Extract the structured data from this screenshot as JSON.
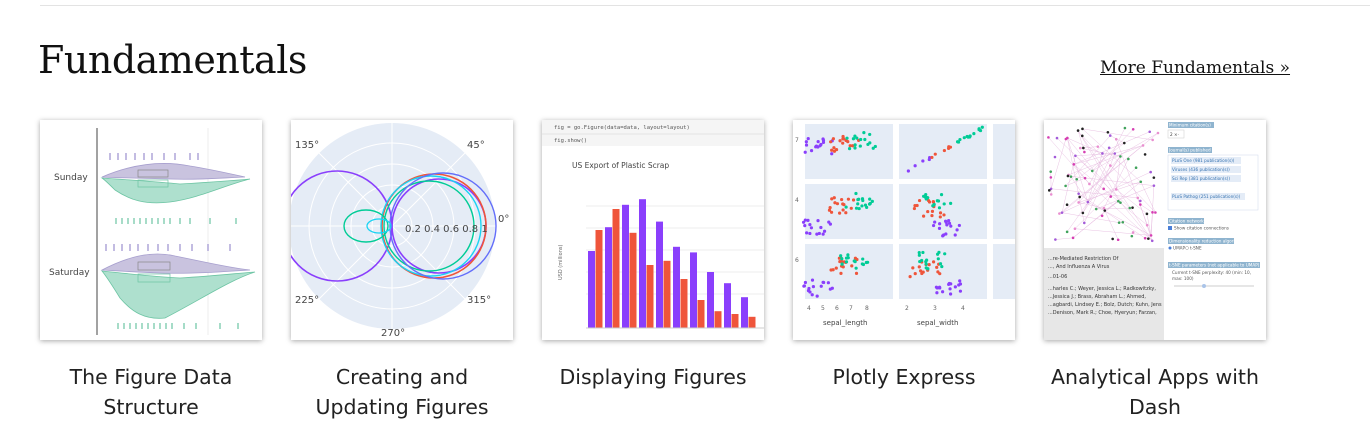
{
  "section": {
    "title": "Fundamentals",
    "more_link": "More Fundamentals »"
  },
  "cards": [
    {
      "caption_lines": [
        "The Figure Data",
        "Structure"
      ],
      "thumb_labels": [
        "Sunday",
        "Saturday"
      ]
    },
    {
      "caption_lines": [
        "Creating and",
        "Updating Figures"
      ],
      "thumb_labels": [
        "135°",
        "45°",
        "0°",
        "225°",
        "315°",
        "270°",
        "0.2 0.4 0.6 0.8 1"
      ]
    },
    {
      "caption_lines": [
        "Displaying Figures"
      ],
      "thumb_labels": [
        "fig = go.Figure(data=data, layout=layout)",
        "fig.show()",
        "US Export of Plastic Scrap",
        "USD (millions)"
      ]
    },
    {
      "caption_lines": [
        "Plotly Express"
      ],
      "thumb_labels": [
        "sepal_length",
        "sepal_width"
      ]
    },
    {
      "caption_lines": [
        "Analytical Apps with",
        "Dash"
      ],
      "thumb_labels": [
        "Minimum citation(s)",
        "Journal(s) published",
        "PLoS One (981 publication(s))",
        "Viruses (436 publication(s))",
        "Sci Rep (381 publication(s))",
        "PLoS Pathog (251 publication(s))",
        "Citation network",
        "Dimensionality reduction algorithm",
        "UMAP",
        "t-SNE"
      ]
    }
  ]
}
